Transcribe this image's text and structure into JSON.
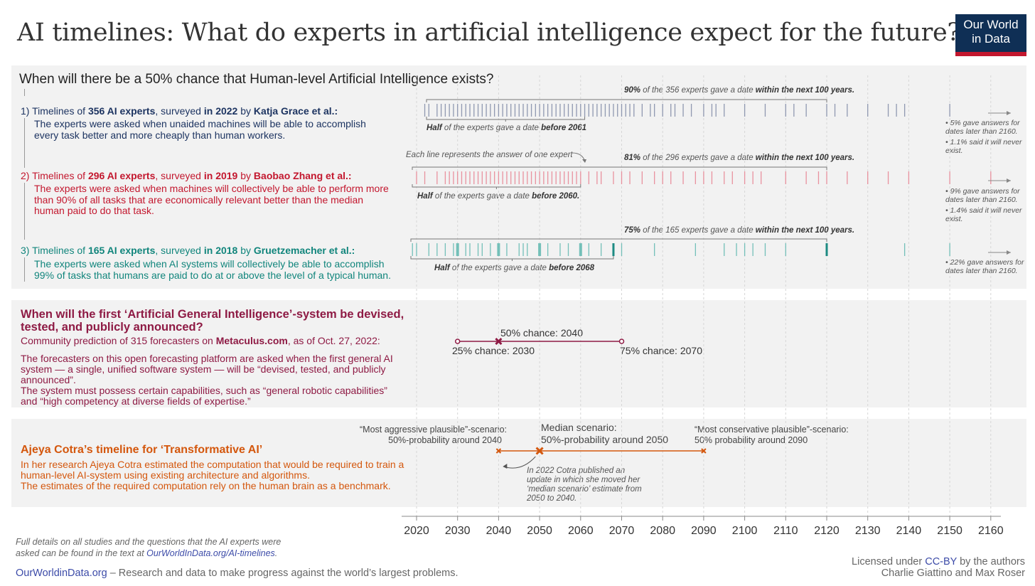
{
  "title": "AI timelines: What do experts in artificial intelligence expect for the future?",
  "logo": {
    "line1": "Our World",
    "line2": "in Data"
  },
  "colors": {
    "navy": "#1d3461",
    "red": "#c3172e",
    "teal": "#11857c",
    "wine": "#8e1a44",
    "orange": "#d4570d",
    "panel": "#f2f2f2"
  },
  "panel1": {
    "question": "When will there be a 50% chance that Human-level Artificial Intelligence exists?",
    "surveys": [
      {
        "pre": "1) Timelines of ",
        "count": "356 AI experts",
        "mid": ", surveyed ",
        "year": "in 2022",
        "by": " by ",
        "author": "Katja Grace et al.:",
        "desc": "The experts were asked when unaided machines will be able to accomplish every task better and more cheaply than human workers.",
        "top_note": {
          "a": "90%",
          "b": " of the 356 experts gave a date ",
          "c": "within the next 100 years."
        },
        "bottom_note": {
          "a": "Half",
          "b": " of the experts gave a date ",
          "c": "before 2061"
        },
        "side": [
          "• 5% gave answers for dates later than 2160.",
          "• 1.1% said it will never exist."
        ]
      },
      {
        "pre": "2) Timelines of ",
        "count": "296 AI experts",
        "mid": ", surveyed ",
        "year": "in 2019",
        "by": " by ",
        "author": "Baobao Zhang et al.:",
        "desc": "The experts were asked when machines will collectively be able to perform more than 90% of all tasks that are economically relevant better than the median human paid to do that task.",
        "top_note": {
          "a": "81%",
          "b": " of the 296 experts gave a date ",
          "c": "within the next 100 years."
        },
        "bottom_note": {
          "a": "Half",
          "b": " of the experts gave a date ",
          "c": "before 2060."
        },
        "side": [
          "• 9% gave answers for dates later than 2160.",
          "• 1.4% said it will never exist."
        ]
      },
      {
        "pre": "3) Timelines of ",
        "count": "165 AI experts",
        "mid": ", surveyed ",
        "year": "in 2018",
        "by": " by ",
        "author": "Gruetzemacher et al.:",
        "desc": "The experts were asked when AI systems will collectively be able to accomplish 99% of tasks that humans are paid to do at or above the level of a typical human.",
        "top_note": {
          "a": "75%",
          "b": " of the 165 experts gave a date ",
          "c": "within the next 100 years."
        },
        "bottom_note": {
          "a": "Half",
          "b": " of the experts gave a date ",
          "c": "before 2068"
        },
        "side": [
          "• 22% gave answers for dates later than 2160."
        ]
      }
    ],
    "each_line_note": "Each line represents the answer of one expert"
  },
  "panel2": {
    "question": "When will the first ‘Artificial General Intelligence’-system be devised, tested, and publicly announced?",
    "pred_pre": "Community prediction of 315 forecasters on ",
    "pred_site": "Metaculus.com",
    "pred_post": ",  as of Oct. 27, 2022:",
    "desc1": "The forecasters on this open forecasting platform are asked when the first general AI system — a single, unified software system — will be “devised, tested, and publicly announced”.",
    "desc2": "The system must possess certain capabilities, such as “general robotic capabilities” and “high competency at diverse fields of expertise.”",
    "label_50": "50% chance: 2040",
    "label_25": "25% chance: 2030",
    "label_75": "75% chance: 2070"
  },
  "panel3": {
    "title": "Ajeya Cotra’s timeline for ‘Transformative AI’",
    "desc1": "In her research Ajeya Cotra estimated the computation that would be required to train a human-level AI-system using existing architecture and algorithms.",
    "desc2": "The estimates of the required computation rely on the human brain as a benchmark.",
    "aggressive_1": "“Most aggressive plausible”-scenario:",
    "aggressive_2": "50%-probability around 2040",
    "median_1": "Median scenario:",
    "median_2": "50%-probability around 2050",
    "conservative_1": "“Most conservative plausible”-scenario:",
    "conservative_2": "50% probability around 2090",
    "update_note": "In 2022 Cotra published an update in which she moved her ‘median scenario’ estimate from 2050 to 2040."
  },
  "chart_data": [
    {
      "type": "strip",
      "name": "Expert survey timelines (each line = one expert's answer)",
      "x_axis": {
        "range": [
          2020,
          2160
        ],
        "ticks": [
          2020,
          2030,
          2040,
          2050,
          2060,
          2070,
          2080,
          2090,
          2100,
          2110,
          2120,
          2130,
          2140,
          2150,
          2160
        ]
      },
      "series": [
        {
          "name": "Grace et al. 2022",
          "n": 356,
          "median": 2061,
          "share_within_100y": 0.9,
          "color": "#1d3461",
          "answers": [
            2022,
            2023,
            2025,
            2026,
            2027,
            2028,
            2029,
            2030,
            2031,
            2032,
            2033,
            2034,
            2035,
            2036,
            2037,
            2038,
            2039,
            2040,
            2041,
            2042,
            2043,
            2044,
            2045,
            2046,
            2047,
            2048,
            2049,
            2050,
            2051,
            2052,
            2053,
            2054,
            2055,
            2056,
            2057,
            2058,
            2059,
            2060,
            2061,
            2062,
            2063,
            2064,
            2065,
            2066,
            2067,
            2068,
            2069,
            2070,
            2071,
            2072,
            2073,
            2075,
            2077,
            2078,
            2080,
            2082,
            2083,
            2085,
            2087,
            2090,
            2092,
            2093,
            2095,
            2100,
            2105,
            2110,
            2112,
            2115,
            2120,
            2122,
            2125,
            2130,
            2135,
            2137,
            2139,
            2150
          ]
        },
        {
          "name": "Zhang et al. 2019",
          "n": 296,
          "median": 2060,
          "share_within_100y": 0.81,
          "color": "#c3172e",
          "answers": [
            2020,
            2022,
            2025,
            2027,
            2028,
            2029,
            2030,
            2031,
            2032,
            2033,
            2034,
            2035,
            2036,
            2037,
            2038,
            2039,
            2040,
            2041,
            2042,
            2043,
            2044,
            2045,
            2046,
            2047,
            2048,
            2049,
            2050,
            2051,
            2052,
            2053,
            2054,
            2055,
            2056,
            2057,
            2058,
            2059,
            2060,
            2062,
            2064,
            2065,
            2068,
            2070,
            2072,
            2075,
            2078,
            2080,
            2082,
            2085,
            2088,
            2090,
            2092,
            2095,
            2097,
            2100,
            2102,
            2104,
            2110,
            2115,
            2118,
            2120,
            2125,
            2130,
            2135,
            2140,
            2150,
            2160
          ]
        },
        {
          "name": "Gruetzemacher et al. 2018",
          "n": 165,
          "median": 2068,
          "share_within_100y": 0.75,
          "color": "#11857c",
          "answers": [
            2019,
            2020,
            2023,
            2025,
            2027,
            2029,
            2030,
            2032,
            2033,
            2035,
            2036,
            2038,
            2040,
            2042,
            2045,
            2046,
            2047,
            2050,
            2052,
            2055,
            2057,
            2060,
            2062,
            2065,
            2068,
            2070,
            2078,
            2088,
            2095,
            2098,
            2100,
            2102,
            2105,
            2110,
            2120,
            2139,
            2150
          ]
        }
      ]
    },
    {
      "type": "interval",
      "name": "Metaculus AGI community prediction",
      "points": {
        "p25": 2030,
        "p50": 2040,
        "p75": 2070
      },
      "color": "#8e1a44"
    },
    {
      "type": "interval",
      "name": "Cotra Transformative AI scenarios",
      "points": {
        "aggressive": 2040,
        "median": 2050,
        "conservative": 2090
      },
      "color": "#d4570d"
    }
  ],
  "footer": {
    "details_1": "Full details on all studies and the questions that the AI experts were",
    "details_2": "asked can be found in the text at ",
    "details_link": "OurWorldInData.org/AI-timelines",
    "details_end": ".",
    "site": "OurWorldinData.org",
    "tagline": " – Research and data to make progress against the world’s largest problems.",
    "license_pre": "Licensed under ",
    "license_link": "CC-BY",
    "license_post": " by the authors",
    "authors": "Charlie Giattino and Max Roser"
  }
}
